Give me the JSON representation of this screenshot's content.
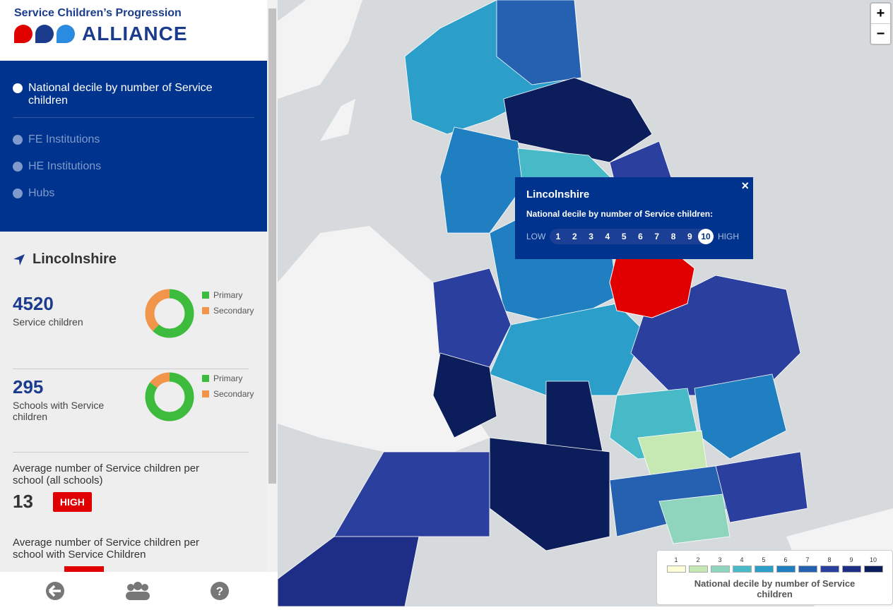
{
  "header": {
    "title": "Service Children’s Progression",
    "brand": "ALLIANCE"
  },
  "menu": [
    {
      "label": "National decile by number of Service children",
      "active": true
    },
    {
      "label": "FE Institutions",
      "active": false
    },
    {
      "label": "HE Institutions",
      "active": false
    },
    {
      "label": "Hubs",
      "active": false
    }
  ],
  "area": {
    "name": "Lincolnshire"
  },
  "stats": [
    {
      "value": 4520,
      "label": "Service children",
      "breakdown": [
        {
          "name": "Primary",
          "color": "#3dbb3d",
          "value": 62
        },
        {
          "name": "Secondary",
          "color": "#f0954a",
          "value": 38
        }
      ]
    },
    {
      "value": 295,
      "label": "Schools with Service children",
      "breakdown": [
        {
          "name": "Primary",
          "color": "#3dbb3d",
          "value": 85
        },
        {
          "name": "Secondary",
          "color": "#f0954a",
          "value": 15
        }
      ]
    }
  ],
  "averages": [
    {
      "label": "Average number of Service children per school (all schools)",
      "value": 13,
      "badge": "HIGH"
    },
    {
      "label": "Average number of Service children per school with Service Children"
    }
  ],
  "popup": {
    "title": "Lincolnshire",
    "subtitle": "National decile by number of Service children:",
    "low": "LOW",
    "high": "HIGH",
    "deciles": [
      1,
      2,
      3,
      4,
      5,
      6,
      7,
      8,
      9,
      10
    ],
    "selected": 10
  },
  "zoom": {
    "in": "+",
    "out": "−"
  },
  "legend": {
    "title": "National decile by number of Service children",
    "items": [
      {
        "label": "1",
        "color": "#fdfdd6"
      },
      {
        "label": "2",
        "color": "#c6e8b3"
      },
      {
        "label": "3",
        "color": "#8fd4bd"
      },
      {
        "label": "4",
        "color": "#47b9c7"
      },
      {
        "label": "5",
        "color": "#2b9fca"
      },
      {
        "label": "6",
        "color": "#1f7fc0"
      },
      {
        "label": "7",
        "color": "#2561b0"
      },
      {
        "label": "8",
        "color": "#2a3f9e"
      },
      {
        "label": "9",
        "color": "#1e2d85"
      },
      {
        "label": "10",
        "color": "#0b1e5b"
      }
    ]
  }
}
